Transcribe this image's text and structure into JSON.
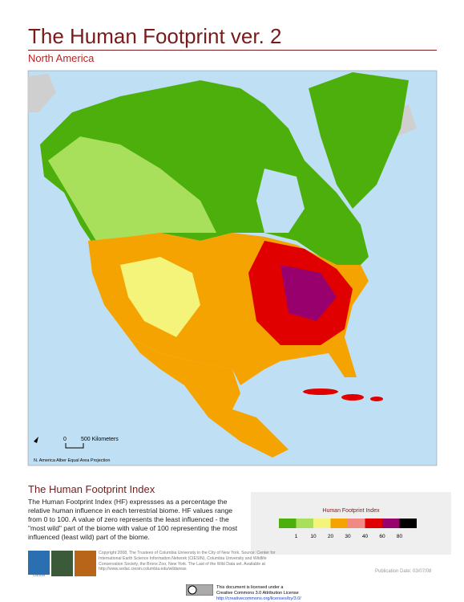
{
  "header": {
    "title": "The Human Footprint ver. 2",
    "subtitle": "North America"
  },
  "map": {
    "scale": {
      "zero": "0",
      "label": "500 Kilometers"
    },
    "projection": "N. America Alber Equal Area Projection"
  },
  "section": {
    "title": "The Human Footprint Index",
    "text": "The Human Footprint Index (HF) expressses as a percentage the relative human influence in each terrestrial biome. HF values range from 0 to 100. A value of zero represents the least influenced - the \"most wild\" part of the biome with value of 100 representing the most influenced (least wild) part of the biome."
  },
  "legend": {
    "title": "Human Footprint Index",
    "colors": [
      "#4caf0c",
      "#a8e05c",
      "#f4f47a",
      "#f5a300",
      "#f08a84",
      "#e00000",
      "#98006e",
      "#000000"
    ],
    "labels": [
      1,
      10,
      20,
      30,
      40,
      60,
      80
    ]
  },
  "footer": {
    "logo": "CIESIN",
    "copyright": "Copyright 2008, The Trustees of Columbia University in the City of New York. Source: Center for International Earth Science Information Network (CIESIN), Columbia University and Wildlife Conservation Society, the Bronx Zoo, New York. The Last of the Wild Data set. Available at http://www.sedac.ciesin.columbia.edu/wildareas",
    "date": "Publication Date: 03/07/08",
    "license": [
      "This document is licensed under a",
      "Creative Commons 3.0 Attribution License",
      "http://creativecommons.org/licenses/by/3.0/"
    ]
  }
}
